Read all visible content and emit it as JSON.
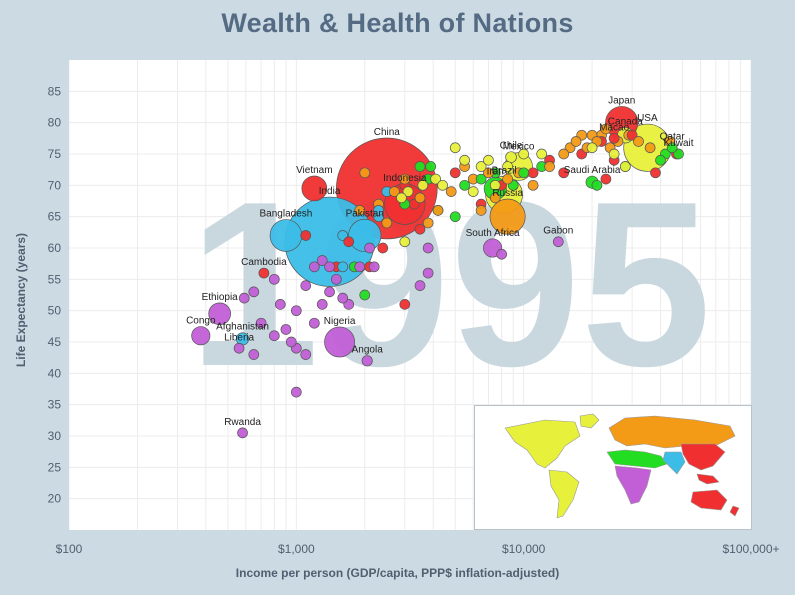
{
  "chart_data": {
    "type": "scatter",
    "title": "Wealth & Health of Nations",
    "xlabel": "Income per person (GDP/capita, PPP$ inflation-adjusted)",
    "ylabel": "Life Expectancy (years)",
    "x_scale": "log",
    "xlim": [
      100,
      100000
    ],
    "ylim": [
      15,
      90
    ],
    "x_ticks": [
      "$100",
      "$1,000",
      "$10,000",
      "$100,000+"
    ],
    "y_ticks": [
      20,
      25,
      30,
      35,
      40,
      45,
      50,
      55,
      60,
      65,
      70,
      75,
      80,
      85
    ],
    "watermark_year": "1995",
    "grid": true,
    "region_colors": {
      "east_asia_pacific": "#f03030",
      "south_asia": "#3bbde8",
      "sub_saharan_africa": "#c25fd6",
      "middle_east_north_africa": "#22dd22",
      "europe_central_asia": "#f39a16",
      "america": "#e7f03a"
    },
    "labeled_points": [
      {
        "name": "China",
        "x": 2500,
        "y": 69.5,
        "size": 1210,
        "region": "east_asia_pacific"
      },
      {
        "name": "Bangladesh",
        "x": 900,
        "y": 62,
        "size": 120,
        "region": "south_asia"
      },
      {
        "name": "India",
        "x": 1400,
        "y": 61,
        "size": 950,
        "region": "south_asia"
      },
      {
        "name": "Pakistan",
        "x": 2000,
        "y": 62,
        "size": 125,
        "region": "south_asia"
      },
      {
        "name": "Vietnam",
        "x": 1200,
        "y": 69.5,
        "size": 74,
        "region": "east_asia_pacific"
      },
      {
        "name": "Indonesia",
        "x": 3000,
        "y": 67,
        "size": 197,
        "region": "east_asia_pacific"
      },
      {
        "name": "Cambodia",
        "x": 720,
        "y": 56,
        "size": 10,
        "region": "east_asia_pacific"
      },
      {
        "name": "Ethiopia",
        "x": 460,
        "y": 49.5,
        "size": 57,
        "region": "sub_saharan_africa"
      },
      {
        "name": "Congo",
        "x": 380,
        "y": 46,
        "size": 40,
        "region": "sub_saharan_africa"
      },
      {
        "name": "Afghanistan",
        "x": 580,
        "y": 45.5,
        "size": 18,
        "region": "south_asia"
      },
      {
        "name": "Liberia",
        "x": 560,
        "y": 44,
        "size": 2,
        "region": "sub_saharan_africa"
      },
      {
        "name": "Nigeria",
        "x": 1550,
        "y": 45,
        "size": 108,
        "region": "sub_saharan_africa"
      },
      {
        "name": "Angola",
        "x": 2050,
        "y": 42,
        "size": 13,
        "region": "sub_saharan_africa"
      },
      {
        "name": "Rwanda",
        "x": 580,
        "y": 30.5,
        "size": 6,
        "region": "sub_saharan_africa"
      },
      {
        "name": "South Africa",
        "x": 7300,
        "y": 60,
        "size": 40,
        "region": "sub_saharan_africa"
      },
      {
        "name": "Gabon",
        "x": 14200,
        "y": 61,
        "size": 1,
        "region": "sub_saharan_africa"
      },
      {
        "name": "Russia",
        "x": 8500,
        "y": 65,
        "size": 148,
        "region": "europe_central_asia"
      },
      {
        "name": "Brazil",
        "x": 8200,
        "y": 68.5,
        "size": 162,
        "region": "america"
      },
      {
        "name": "Chile",
        "x": 8800,
        "y": 74.5,
        "size": 14,
        "region": "america"
      },
      {
        "name": "Mexico",
        "x": 9500,
        "y": 73,
        "size": 92,
        "region": "america"
      },
      {
        "name": "Iran",
        "x": 7500,
        "y": 69.5,
        "size": 59,
        "region": "middle_east_north_africa"
      },
      {
        "name": "Japan",
        "x": 27000,
        "y": 80,
        "size": 125,
        "region": "east_asia_pacific"
      },
      {
        "name": "Canada",
        "x": 28000,
        "y": 78,
        "size": 29,
        "region": "america"
      },
      {
        "name": "Macao",
        "x": 25000,
        "y": 77.5,
        "size": 0.4,
        "region": "east_asia_pacific"
      },
      {
        "name": "USA",
        "x": 35000,
        "y": 76,
        "size": 266,
        "region": "america"
      },
      {
        "name": "Qatar",
        "x": 45000,
        "y": 76,
        "size": 0.5,
        "region": "middle_east_north_africa"
      },
      {
        "name": "Kuwait",
        "x": 48000,
        "y": 75,
        "size": 1.6,
        "region": "middle_east_north_africa"
      },
      {
        "name": "Saudi Arabia",
        "x": 20000,
        "y": 70.5,
        "size": 18,
        "region": "middle_east_north_africa"
      }
    ],
    "other_points": [
      [
        1000,
        37,
        10,
        "sub_saharan_africa"
      ],
      [
        590,
        52,
        5,
        "sub_saharan_africa"
      ],
      [
        650,
        53,
        6,
        "sub_saharan_africa"
      ],
      [
        700,
        48,
        4,
        "sub_saharan_africa"
      ],
      [
        800,
        55,
        7,
        "sub_saharan_africa"
      ],
      [
        850,
        51,
        5,
        "sub_saharan_africa"
      ],
      [
        900,
        47,
        6,
        "sub_saharan_africa"
      ],
      [
        1000,
        50,
        5,
        "sub_saharan_africa"
      ],
      [
        1100,
        54,
        8,
        "sub_saharan_africa"
      ],
      [
        1200,
        57,
        4,
        "sub_saharan_africa"
      ],
      [
        1300,
        51,
        5,
        "sub_saharan_africa"
      ],
      [
        1400,
        53,
        9,
        "sub_saharan_africa"
      ],
      [
        1500,
        55,
        5,
        "sub_saharan_africa"
      ],
      [
        1600,
        52,
        6,
        "sub_saharan_africa"
      ],
      [
        1700,
        51,
        7,
        "sub_saharan_africa"
      ],
      [
        1000,
        44,
        6,
        "sub_saharan_africa"
      ],
      [
        950,
        45,
        5,
        "sub_saharan_africa"
      ],
      [
        1200,
        48,
        4,
        "sub_saharan_africa"
      ],
      [
        1100,
        43,
        5,
        "sub_saharan_africa"
      ],
      [
        650,
        43,
        4,
        "sub_saharan_africa"
      ],
      [
        800,
        46,
        6,
        "sub_saharan_africa"
      ],
      [
        1900,
        57,
        3,
        "sub_saharan_africa"
      ],
      [
        3800,
        56,
        3,
        "sub_saharan_africa"
      ],
      [
        3500,
        54,
        4,
        "sub_saharan_africa"
      ],
      [
        3800,
        60,
        5,
        "sub_saharan_africa"
      ],
      [
        1300,
        58,
        6,
        "sub_saharan_africa"
      ],
      [
        1400,
        57,
        5,
        "sub_saharan_africa"
      ],
      [
        8000,
        59,
        3,
        "sub_saharan_africa"
      ],
      [
        2100,
        60,
        4,
        "sub_saharan_africa"
      ],
      [
        2200,
        57,
        3,
        "sub_saharan_africa"
      ],
      [
        1500,
        57,
        8,
        "east_asia_pacific"
      ],
      [
        1100,
        62,
        6,
        "east_asia_pacific"
      ],
      [
        1700,
        61,
        5,
        "east_asia_pacific"
      ],
      [
        2100,
        57,
        6,
        "east_asia_pacific"
      ],
      [
        2400,
        60,
        4,
        "east_asia_pacific"
      ],
      [
        3000,
        51,
        3,
        "east_asia_pacific"
      ],
      [
        3500,
        63,
        9,
        "east_asia_pacific"
      ],
      [
        3300,
        67,
        10,
        "east_asia_pacific"
      ],
      [
        3000,
        70,
        6,
        "east_asia_pacific"
      ],
      [
        5000,
        72,
        9,
        "east_asia_pacific"
      ],
      [
        6500,
        67,
        6,
        "east_asia_pacific"
      ],
      [
        8000,
        70,
        8,
        "east_asia_pacific"
      ],
      [
        11000,
        72,
        6,
        "east_asia_pacific"
      ],
      [
        13000,
        74,
        10,
        "east_asia_pacific"
      ],
      [
        15000,
        72,
        6,
        "east_asia_pacific"
      ],
      [
        18000,
        75,
        7,
        "east_asia_pacific"
      ],
      [
        22000,
        77,
        9,
        "east_asia_pacific"
      ],
      [
        23000,
        71,
        6,
        "east_asia_pacific"
      ],
      [
        25000,
        74,
        6,
        "east_asia_pacific"
      ],
      [
        30000,
        78,
        8,
        "east_asia_pacific"
      ],
      [
        38000,
        72,
        4,
        "east_asia_pacific"
      ],
      [
        47000,
        75,
        5,
        "east_asia_pacific"
      ],
      [
        1600,
        62,
        6,
        "south_asia"
      ],
      [
        2300,
        65,
        4,
        "south_asia"
      ],
      [
        1600,
        57,
        3,
        "south_asia"
      ],
      [
        2500,
        69,
        5,
        "south_asia"
      ],
      [
        2300,
        66,
        4,
        "south_asia"
      ],
      [
        3800,
        71,
        6,
        "middle_east_north_africa"
      ],
      [
        3900,
        73,
        7,
        "middle_east_north_africa"
      ],
      [
        4200,
        66,
        8,
        "middle_east_north_africa"
      ],
      [
        5000,
        65,
        5,
        "middle_east_north_africa"
      ],
      [
        5500,
        70,
        6,
        "middle_east_north_africa"
      ],
      [
        6500,
        71,
        7,
        "middle_east_north_africa"
      ],
      [
        7500,
        72,
        6,
        "middle_east_north_africa"
      ],
      [
        9000,
        70,
        6,
        "middle_east_north_africa"
      ],
      [
        10000,
        72,
        5,
        "middle_east_north_africa"
      ],
      [
        12000,
        73,
        6,
        "middle_east_north_africa"
      ],
      [
        21000,
        70,
        8,
        "middle_east_north_africa"
      ],
      [
        28000,
        73,
        5,
        "middle_east_north_africa"
      ],
      [
        42000,
        75,
        4,
        "middle_east_north_africa"
      ],
      [
        40000,
        74,
        4,
        "middle_east_north_africa"
      ],
      [
        3000,
        67,
        10,
        "middle_east_north_africa"
      ],
      [
        2000,
        52.5,
        4,
        "middle_east_north_africa"
      ],
      [
        1800,
        57,
        5,
        "middle_east_north_africa"
      ],
      [
        3500,
        73,
        5,
        "middle_east_north_africa"
      ],
      [
        2000,
        72,
        6,
        "europe_central_asia"
      ],
      [
        2300,
        67,
        5,
        "europe_central_asia"
      ],
      [
        2700,
        69,
        4,
        "europe_central_asia"
      ],
      [
        3000,
        71,
        6,
        "europe_central_asia"
      ],
      [
        3500,
        68,
        6,
        "europe_central_asia"
      ],
      [
        3800,
        64,
        5,
        "europe_central_asia"
      ],
      [
        4200,
        66,
        6,
        "europe_central_asia"
      ],
      [
        4800,
        69,
        7,
        "europe_central_asia"
      ],
      [
        5500,
        73,
        6,
        "europe_central_asia"
      ],
      [
        6000,
        71,
        8,
        "europe_central_asia"
      ],
      [
        6500,
        66,
        5,
        "europe_central_asia"
      ],
      [
        7000,
        72,
        6,
        "europe_central_asia"
      ],
      [
        7500,
        68,
        8,
        "europe_central_asia"
      ],
      [
        8500,
        71,
        6,
        "europe_central_asia"
      ],
      [
        9500,
        72,
        7,
        "europe_central_asia"
      ],
      [
        11000,
        70,
        6,
        "europe_central_asia"
      ],
      [
        13000,
        73,
        5,
        "europe_central_asia"
      ],
      [
        15000,
        75,
        6,
        "europe_central_asia"
      ],
      [
        16000,
        76,
        7,
        "europe_central_asia"
      ],
      [
        17000,
        77,
        6,
        "europe_central_asia"
      ],
      [
        18000,
        78,
        8,
        "europe_central_asia"
      ],
      [
        19000,
        76,
        7,
        "europe_central_asia"
      ],
      [
        20000,
        78,
        10,
        "europe_central_asia"
      ],
      [
        21000,
        77,
        9,
        "europe_central_asia"
      ],
      [
        22000,
        78,
        12,
        "europe_central_asia"
      ],
      [
        23000,
        79,
        9,
        "europe_central_asia"
      ],
      [
        24000,
        76,
        8,
        "europe_central_asia"
      ],
      [
        26000,
        77,
        11,
        "europe_central_asia"
      ],
      [
        29000,
        78,
        9,
        "europe_central_asia"
      ],
      [
        32000,
        77,
        7,
        "europe_central_asia"
      ],
      [
        36000,
        76,
        6,
        "europe_central_asia"
      ],
      [
        44000,
        77,
        5,
        "europe_central_asia"
      ],
      [
        1900,
        66,
        4,
        "europe_central_asia"
      ],
      [
        2500,
        64,
        5,
        "europe_central_asia"
      ],
      [
        2900,
        68,
        4,
        "america"
      ],
      [
        3100,
        69,
        5,
        "america"
      ],
      [
        3600,
        70,
        6,
        "america"
      ],
      [
        4100,
        71,
        6,
        "america"
      ],
      [
        4400,
        70,
        5,
        "america"
      ],
      [
        5000,
        76,
        5,
        "america"
      ],
      [
        5500,
        74,
        6,
        "america"
      ],
      [
        6000,
        69,
        8,
        "america"
      ],
      [
        6500,
        73,
        6,
        "america"
      ],
      [
        7000,
        74,
        5,
        "america"
      ],
      [
        7500,
        70,
        7,
        "america"
      ],
      [
        8500,
        73,
        6,
        "america"
      ],
      [
        10000,
        75,
        4,
        "america"
      ],
      [
        12000,
        75,
        5,
        "america"
      ],
      [
        3000,
        61,
        4,
        "america"
      ],
      [
        20000,
        76,
        5,
        "america"
      ],
      [
        25000,
        75,
        5,
        "america"
      ],
      [
        28000,
        73,
        5,
        "america"
      ]
    ]
  }
}
